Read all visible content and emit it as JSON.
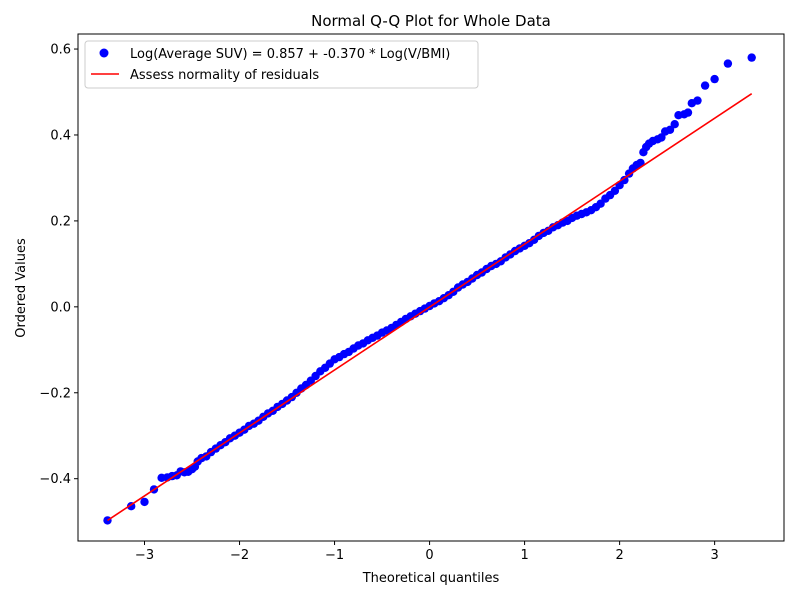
{
  "chart_data": {
    "type": "scatter",
    "title": "Normal Q-Q Plot for Whole Data",
    "xlabel": "Theoretical quantiles",
    "ylabel": "Ordered Values",
    "xlim": [
      -3.7,
      3.73
    ],
    "ylim": [
      -0.545,
      0.635
    ],
    "xticks": [
      -3,
      -2,
      -1,
      0,
      1,
      2,
      3
    ],
    "xtick_labels": [
      "−3",
      "−2",
      "−1",
      "0",
      "1",
      "2",
      "3"
    ],
    "yticks": [
      -0.4,
      -0.2,
      0.0,
      0.2,
      0.4,
      0.6
    ],
    "ytick_labels": [
      "−0.4",
      "−0.2",
      "0.0",
      "0.2",
      "0.4",
      "0.6"
    ],
    "grid": false,
    "legend_position": "top-left",
    "series": [
      {
        "name": "Log(Average SUV) = 0.857 + -0.370 * Log(V/BMI)",
        "kind": "scatter",
        "color": "#0000ff",
        "points": [
          [
            -3.39,
            -0.497
          ],
          [
            -3.14,
            -0.464
          ],
          [
            -3.0,
            -0.454
          ],
          [
            -2.9,
            -0.425
          ],
          [
            -2.82,
            -0.398
          ],
          [
            -2.76,
            -0.397
          ],
          [
            -2.71,
            -0.394
          ],
          [
            -2.66,
            -0.392
          ],
          [
            -2.62,
            -0.383
          ],
          [
            -2.58,
            -0.385
          ],
          [
            -2.54,
            -0.384
          ],
          [
            -2.5,
            -0.378
          ],
          [
            -2.47,
            -0.372
          ],
          [
            -2.44,
            -0.36
          ],
          [
            -2.4,
            -0.352
          ],
          [
            -2.35,
            -0.348
          ],
          [
            -2.3,
            -0.338
          ],
          [
            -2.25,
            -0.33
          ],
          [
            -2.2,
            -0.322
          ],
          [
            -2.15,
            -0.315
          ],
          [
            -2.1,
            -0.306
          ],
          [
            -2.05,
            -0.3
          ],
          [
            -2.0,
            -0.293
          ],
          [
            -1.95,
            -0.286
          ],
          [
            -1.9,
            -0.277
          ],
          [
            -1.85,
            -0.272
          ],
          [
            -1.8,
            -0.265
          ],
          [
            -1.75,
            -0.256
          ],
          [
            -1.7,
            -0.248
          ],
          [
            -1.65,
            -0.242
          ],
          [
            -1.6,
            -0.233
          ],
          [
            -1.55,
            -0.226
          ],
          [
            -1.5,
            -0.218
          ],
          [
            -1.45,
            -0.21
          ],
          [
            -1.4,
            -0.2
          ],
          [
            -1.35,
            -0.19
          ],
          [
            -1.3,
            -0.182
          ],
          [
            -1.25,
            -0.172
          ],
          [
            -1.2,
            -0.161
          ],
          [
            -1.15,
            -0.15
          ],
          [
            -1.1,
            -0.142
          ],
          [
            -1.05,
            -0.132
          ],
          [
            -1.0,
            -0.122
          ],
          [
            -0.95,
            -0.117
          ],
          [
            -0.9,
            -0.11
          ],
          [
            -0.85,
            -0.105
          ],
          [
            -0.8,
            -0.097
          ],
          [
            -0.75,
            -0.09
          ],
          [
            -0.7,
            -0.085
          ],
          [
            -0.65,
            -0.078
          ],
          [
            -0.6,
            -0.072
          ],
          [
            -0.55,
            -0.067
          ],
          [
            -0.5,
            -0.06
          ],
          [
            -0.45,
            -0.055
          ],
          [
            -0.4,
            -0.049
          ],
          [
            -0.35,
            -0.042
          ],
          [
            -0.3,
            -0.035
          ],
          [
            -0.25,
            -0.028
          ],
          [
            -0.2,
            -0.022
          ],
          [
            -0.15,
            -0.016
          ],
          [
            -0.1,
            -0.01
          ],
          [
            -0.05,
            -0.004
          ],
          [
            0.0,
            0.002
          ],
          [
            0.05,
            0.008
          ],
          [
            0.1,
            0.013
          ],
          [
            0.15,
            0.02
          ],
          [
            0.2,
            0.027
          ],
          [
            0.25,
            0.035
          ],
          [
            0.3,
            0.045
          ],
          [
            0.35,
            0.052
          ],
          [
            0.4,
            0.058
          ],
          [
            0.45,
            0.066
          ],
          [
            0.5,
            0.074
          ],
          [
            0.55,
            0.08
          ],
          [
            0.6,
            0.088
          ],
          [
            0.65,
            0.095
          ],
          [
            0.7,
            0.1
          ],
          [
            0.75,
            0.106
          ],
          [
            0.8,
            0.115
          ],
          [
            0.85,
            0.122
          ],
          [
            0.9,
            0.13
          ],
          [
            0.95,
            0.136
          ],
          [
            1.0,
            0.142
          ],
          [
            1.05,
            0.148
          ],
          [
            1.1,
            0.156
          ],
          [
            1.15,
            0.165
          ],
          [
            1.2,
            0.172
          ],
          [
            1.25,
            0.177
          ],
          [
            1.3,
            0.185
          ],
          [
            1.35,
            0.19
          ],
          [
            1.4,
            0.196
          ],
          [
            1.45,
            0.2
          ],
          [
            1.5,
            0.207
          ],
          [
            1.55,
            0.212
          ],
          [
            1.6,
            0.216
          ],
          [
            1.65,
            0.22
          ],
          [
            1.7,
            0.225
          ],
          [
            1.75,
            0.232
          ],
          [
            1.8,
            0.24
          ],
          [
            1.85,
            0.252
          ],
          [
            1.9,
            0.26
          ],
          [
            1.95,
            0.27
          ],
          [
            2.0,
            0.283
          ],
          [
            2.05,
            0.295
          ],
          [
            2.1,
            0.31
          ],
          [
            2.14,
            0.322
          ],
          [
            2.18,
            0.33
          ],
          [
            2.22,
            0.335
          ],
          [
            2.25,
            0.36
          ],
          [
            2.28,
            0.372
          ],
          [
            2.31,
            0.38
          ],
          [
            2.35,
            0.386
          ],
          [
            2.4,
            0.39
          ],
          [
            2.44,
            0.394
          ],
          [
            2.48,
            0.408
          ],
          [
            2.53,
            0.412
          ],
          [
            2.58,
            0.425
          ],
          [
            2.62,
            0.446
          ],
          [
            2.68,
            0.448
          ],
          [
            2.72,
            0.452
          ],
          [
            2.76,
            0.474
          ],
          [
            2.82,
            0.48
          ],
          [
            2.9,
            0.515
          ],
          [
            3.0,
            0.53
          ],
          [
            3.14,
            0.566
          ],
          [
            3.39,
            0.58
          ]
        ]
      },
      {
        "name": "Assess normality of residuals",
        "kind": "line",
        "color": "#ff0000",
        "points": [
          [
            -3.39,
            -0.497
          ],
          [
            3.39,
            0.496
          ]
        ]
      }
    ]
  }
}
